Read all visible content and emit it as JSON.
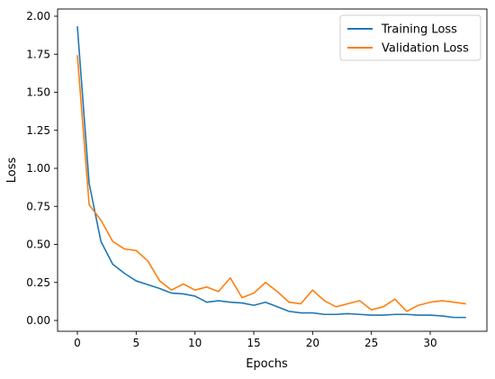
{
  "chart_data": {
    "type": "line",
    "title": "",
    "xlabel": "Epochs",
    "ylabel": "Loss",
    "xlim": [
      -1.65,
      34.65
    ],
    "ylim": [
      -0.0955,
      2.0
    ],
    "xticks": [
      0,
      5,
      10,
      15,
      20,
      25,
      30
    ],
    "xtick_labels": [
      "0",
      "5",
      "10",
      "15",
      "20",
      "25",
      "30"
    ],
    "yticks": [
      0.0,
      0.25,
      0.5,
      0.75,
      1.0,
      1.25,
      1.5,
      1.75,
      2.0
    ],
    "ytick_labels": [
      "0.00",
      "0.25",
      "0.50",
      "0.75",
      "1.00",
      "1.25",
      "1.50",
      "1.75",
      "2.00"
    ],
    "grid": false,
    "legend_position": "top-right",
    "x": [
      0,
      1,
      2,
      3,
      4,
      5,
      6,
      7,
      8,
      9,
      10,
      11,
      12,
      13,
      14,
      15,
      16,
      17,
      18,
      19,
      20,
      21,
      22,
      23,
      24,
      25,
      26,
      27,
      28,
      29,
      30,
      31,
      32,
      33
    ],
    "series": [
      {
        "name": "Training Loss",
        "color": "#1f77b4",
        "values": [
          1.93,
          0.9,
          0.52,
          0.37,
          0.31,
          0.26,
          0.235,
          0.21,
          0.18,
          0.175,
          0.16,
          0.12,
          0.13,
          0.12,
          0.115,
          0.1,
          0.12,
          0.09,
          0.06,
          0.05,
          0.05,
          0.04,
          0.04,
          0.045,
          0.04,
          0.035,
          0.035,
          0.04,
          0.04,
          0.035,
          0.035,
          0.03,
          0.02,
          0.02
        ]
      },
      {
        "name": "Validation Loss",
        "color": "#ff7f0e",
        "values": [
          1.74,
          0.76,
          0.66,
          0.52,
          0.47,
          0.46,
          0.39,
          0.26,
          0.2,
          0.24,
          0.2,
          0.22,
          0.19,
          0.28,
          0.15,
          0.18,
          0.25,
          0.19,
          0.12,
          0.11,
          0.2,
          0.13,
          0.09,
          0.11,
          0.13,
          0.07,
          0.09,
          0.14,
          0.06,
          0.1,
          0.12,
          0.13,
          0.12,
          0.11
        ]
      }
    ]
  }
}
